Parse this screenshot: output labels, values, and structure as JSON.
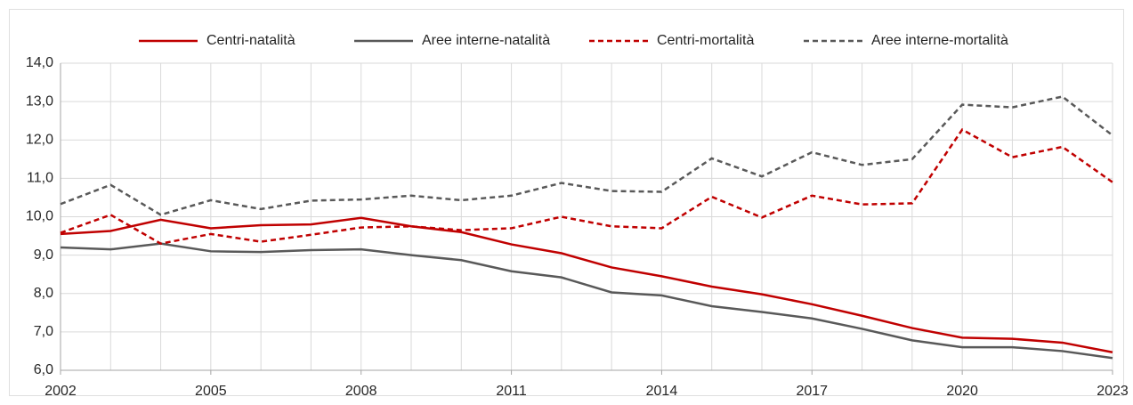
{
  "chart_data": {
    "type": "line",
    "x": [
      2002,
      2003,
      2004,
      2005,
      2006,
      2007,
      2008,
      2009,
      2010,
      2011,
      2012,
      2013,
      2014,
      2015,
      2016,
      2017,
      2018,
      2019,
      2020,
      2021,
      2022,
      2023
    ],
    "xlim": [
      2002,
      2023
    ],
    "xticks": [
      2002,
      2005,
      2008,
      2011,
      2014,
      2017,
      2020,
      2023
    ],
    "ylim": [
      6,
      14
    ],
    "yticks": [
      {
        "value": 6,
        "label": "6,0"
      },
      {
        "value": 7,
        "label": "7,0"
      },
      {
        "value": 8,
        "label": "8,0"
      },
      {
        "value": 9,
        "label": "9,0"
      },
      {
        "value": 10,
        "label": "10,0"
      },
      {
        "value": 11,
        "label": "11,0"
      },
      {
        "value": 12,
        "label": "12,0"
      },
      {
        "value": 13,
        "label": "13,0"
      },
      {
        "value": 14,
        "label": "14,0"
      }
    ],
    "grid": true,
    "legend": "top",
    "series": [
      {
        "name": "Centri-natalità",
        "color": "#c00000",
        "dashed": false,
        "values": [
          9.55,
          9.63,
          9.92,
          9.7,
          9.78,
          9.8,
          9.97,
          9.75,
          9.6,
          9.28,
          9.05,
          8.68,
          8.45,
          8.18,
          7.98,
          7.72,
          7.42,
          7.1,
          6.85,
          6.82,
          6.72,
          6.47
        ]
      },
      {
        "name": "Aree interne-natalità",
        "color": "#595959",
        "dashed": false,
        "values": [
          9.2,
          9.15,
          9.3,
          9.1,
          9.08,
          9.13,
          9.15,
          9.0,
          8.87,
          8.58,
          8.42,
          8.03,
          7.95,
          7.67,
          7.52,
          7.35,
          7.08,
          6.78,
          6.6,
          6.6,
          6.5,
          6.32
        ]
      },
      {
        "name": "Centri-mortalità",
        "color": "#c00000",
        "dashed": true,
        "values": [
          9.58,
          10.05,
          9.3,
          9.55,
          9.35,
          9.53,
          9.72,
          9.75,
          9.65,
          9.7,
          10.0,
          9.75,
          9.7,
          10.52,
          9.98,
          10.55,
          10.32,
          10.35,
          12.27,
          11.55,
          11.82,
          10.9
        ]
      },
      {
        "name": "Aree interne-mortalità",
        "color": "#595959",
        "dashed": true,
        "values": [
          10.33,
          10.83,
          10.05,
          10.43,
          10.2,
          10.42,
          10.45,
          10.55,
          10.43,
          10.55,
          10.88,
          10.67,
          10.65,
          11.52,
          11.05,
          11.68,
          11.35,
          11.5,
          12.92,
          12.85,
          13.13,
          12.12
        ]
      }
    ]
  }
}
